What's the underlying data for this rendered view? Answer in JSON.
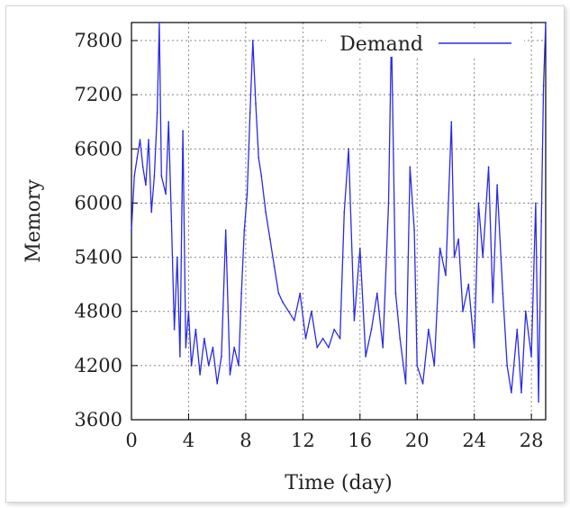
{
  "chart_data": {
    "type": "line",
    "xlabel": "Time (day)",
    "ylabel": "Memory",
    "xlim": [
      0,
      29
    ],
    "ylim": [
      3600,
      8000
    ],
    "x_ticks": [
      0,
      4,
      8,
      12,
      16,
      20,
      24,
      28
    ],
    "y_ticks": [
      3600,
      4200,
      4800,
      5400,
      6000,
      6600,
      7200,
      7800
    ],
    "grid": true,
    "legend_position": "top-right",
    "series": [
      {
        "name": "Demand",
        "color": "#2a2ae8",
        "x": [
          0,
          0.2,
          0.4,
          0.6,
          0.8,
          1.0,
          1.2,
          1.4,
          1.6,
          1.8,
          1.95,
          2.1,
          2.4,
          2.6,
          2.8,
          3.0,
          3.2,
          3.4,
          3.6,
          3.8,
          4.0,
          4.2,
          4.5,
          4.8,
          5.1,
          5.4,
          5.7,
          6.0,
          6.3,
          6.6,
          6.9,
          7.2,
          7.5,
          7.7,
          7.9,
          8.1,
          8.3,
          8.5,
          8.7,
          8.9,
          9.1,
          9.4,
          9.7,
          10.0,
          10.3,
          10.6,
          11.0,
          11.4,
          11.8,
          12.2,
          12.6,
          13.0,
          13.4,
          13.8,
          14.2,
          14.6,
          14.9,
          15.2,
          15.6,
          16.0,
          16.4,
          16.8,
          17.2,
          17.6,
          18.0,
          18.2,
          18.5,
          18.8,
          19.2,
          19.5,
          19.8,
          20.0,
          20.4,
          20.8,
          21.2,
          21.6,
          22.0,
          22.4,
          22.6,
          22.9,
          23.2,
          23.6,
          24.0,
          24.3,
          24.6,
          25.0,
          25.3,
          25.6,
          26.0,
          26.3,
          26.6,
          27.0,
          27.3,
          27.6,
          28.0,
          28.3,
          28.5,
          28.7,
          28.85,
          29.0
        ],
        "y": [
          5700,
          6300,
          6500,
          6700,
          6400,
          6200,
          6700,
          5900,
          6300,
          7000,
          8000,
          6300,
          6100,
          6900,
          5800,
          4600,
          5400,
          4300,
          6800,
          4400,
          4800,
          4200,
          4600,
          4100,
          4500,
          4200,
          4400,
          4000,
          4300,
          5700,
          4100,
          4400,
          4200,
          5000,
          5700,
          6100,
          7000,
          7800,
          7100,
          6500,
          6300,
          5900,
          5600,
          5300,
          5000,
          4900,
          4800,
          4700,
          5000,
          4500,
          4800,
          4400,
          4500,
          4400,
          4600,
          4500,
          5900,
          6600,
          4700,
          5500,
          4300,
          4600,
          5000,
          4400,
          6000,
          7900,
          5000,
          4500,
          4000,
          6400,
          5700,
          4200,
          4000,
          4600,
          4200,
          5500,
          5200,
          6900,
          5400,
          5600,
          4800,
          5100,
          4400,
          6000,
          5400,
          6400,
          4900,
          6200,
          5000,
          4200,
          3900,
          4600,
          3900,
          4800,
          4300,
          6000,
          3800,
          5800,
          7300,
          8000
        ]
      }
    ]
  }
}
